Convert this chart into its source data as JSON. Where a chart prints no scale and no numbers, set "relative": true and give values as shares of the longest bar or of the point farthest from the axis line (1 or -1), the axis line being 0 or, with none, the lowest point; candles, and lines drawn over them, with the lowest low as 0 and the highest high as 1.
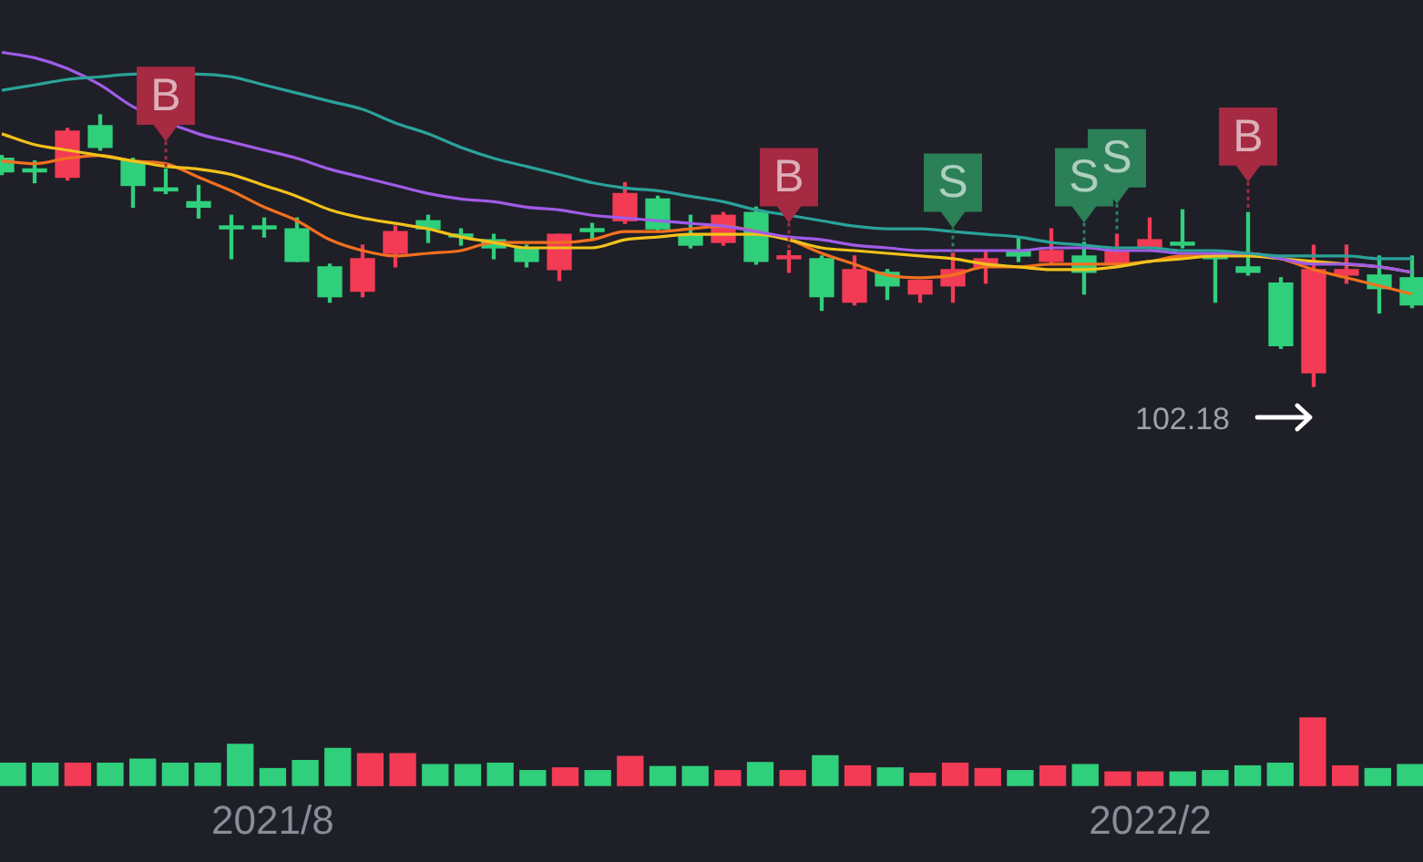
{
  "chart_data": [
    {
      "type": "candlestick",
      "relative": true,
      "tick_labels": false,
      "categories": [
        null,
        null,
        null,
        null,
        null,
        null,
        null,
        null,
        null,
        null,
        null,
        null,
        null,
        null,
        null,
        null,
        null,
        null,
        null,
        null,
        null,
        null,
        null,
        null,
        null,
        null,
        null,
        null,
        null,
        null,
        null,
        null,
        null,
        null,
        null,
        null,
        null,
        null,
        null,
        null,
        null,
        null,
        null,
        null
      ],
      "ohlc": [
        [
          0.84,
          0.85,
          0.78,
          0.79
        ],
        [
          0.8,
          0.83,
          0.75,
          0.79
        ],
        [
          0.77,
          0.95,
          0.76,
          0.94
        ],
        [
          0.96,
          1.0,
          0.87,
          0.88
        ],
        [
          0.83,
          0.84,
          0.66,
          0.74
        ],
        [
          0.73,
          0.8,
          0.71,
          0.72
        ],
        [
          0.68,
          0.74,
          0.62,
          0.66
        ],
        [
          0.59,
          0.63,
          0.47,
          0.58
        ],
        [
          0.59,
          0.62,
          0.55,
          0.58
        ],
        [
          0.58,
          0.62,
          0.46,
          0.46
        ],
        [
          0.44,
          0.45,
          0.31,
          0.33
        ],
        [
          0.35,
          0.52,
          0.33,
          0.47
        ],
        [
          0.49,
          0.59,
          0.44,
          0.57
        ],
        [
          0.61,
          0.63,
          0.53,
          0.58
        ],
        [
          0.56,
          0.58,
          0.52,
          0.55
        ],
        [
          0.54,
          0.56,
          0.47,
          0.51
        ],
        [
          0.51,
          0.52,
          0.44,
          0.46
        ],
        [
          0.43,
          0.56,
          0.39,
          0.56
        ],
        [
          0.58,
          0.6,
          0.54,
          0.57
        ],
        [
          0.61,
          0.75,
          0.6,
          0.71
        ],
        [
          0.69,
          0.7,
          0.57,
          0.58
        ],
        [
          0.56,
          0.63,
          0.51,
          0.52
        ],
        [
          0.53,
          0.64,
          0.52,
          0.63
        ],
        [
          0.64,
          0.66,
          0.45,
          0.46
        ],
        [
          0.47,
          0.5,
          0.42,
          0.48
        ],
        [
          0.47,
          0.48,
          0.28,
          0.33
        ],
        [
          0.31,
          0.48,
          0.3,
          0.43
        ],
        [
          0.42,
          0.43,
          0.32,
          0.37
        ],
        [
          0.34,
          0.39,
          0.31,
          0.39
        ],
        [
          0.37,
          0.49,
          0.31,
          0.43
        ],
        [
          0.44,
          0.5,
          0.38,
          0.47
        ],
        [
          0.5,
          0.55,
          0.46,
          0.48
        ],
        [
          0.46,
          0.58,
          0.45,
          0.5
        ],
        [
          0.48,
          0.53,
          0.34,
          0.42
        ],
        [
          0.45,
          0.56,
          0.44,
          0.5
        ],
        [
          0.51,
          0.62,
          0.5,
          0.54
        ],
        [
          0.53,
          0.65,
          0.51,
          0.52
        ],
        [
          0.48,
          0.49,
          0.31,
          0.47
        ],
        [
          0.44,
          0.64,
          0.41,
          0.42
        ],
        [
          0.38,
          0.4,
          0.14,
          0.15
        ],
        [
          0.05,
          0.52,
          0,
          0.43
        ],
        [
          0.41,
          0.52,
          0.38,
          0.43
        ],
        [
          0.41,
          0.48,
          0.27,
          0.36
        ],
        [
          0.4,
          0.48,
          0.29,
          0.3
        ]
      ],
      "colors": [
        "#30cf7b",
        "#30cf7b",
        "#f33b55",
        "#30cf7b",
        "#30cf7b",
        "#30cf7b",
        "#30cf7b",
        "#30cf7b",
        "#30cf7b",
        "#30cf7b",
        "#30cf7b",
        "#f33b55",
        "#f33b55",
        "#30cf7b",
        "#30cf7b",
        "#30cf7b",
        "#30cf7b",
        "#f33b55",
        "#30cf7b",
        "#f33b55",
        "#30cf7b",
        "#30cf7b",
        "#f33b55",
        "#30cf7b",
        "#f33b55",
        "#30cf7b",
        "#f33b55",
        "#30cf7b",
        "#f33b55",
        "#f33b55",
        "#f33b55",
        "#30cf7b",
        "#f33b55",
        "#30cf7b",
        "#f33b55",
        "#f33b55",
        "#30cf7b",
        "#30cf7b",
        "#30cf7b",
        "#30cf7b",
        "#f33b55",
        "#f33b55",
        "#30cf7b",
        "#30cf7b"
      ],
      "series": [
        {
          "type": "line",
          "color": "#2aa39a",
          "values": [
            1.09,
            1.11,
            1.13,
            1.14,
            1.15,
            null,
            1.15,
            1.14,
            1.11,
            1.08,
            1.05,
            1.02,
            0.97,
            0.93,
            0.88,
            0.84,
            0.81,
            0.78,
            0.75,
            0.73,
            0.72,
            0.7,
            0.68,
            0.65,
            0.63,
            0.61,
            0.59,
            0.58,
            0.58,
            0.57,
            0.56,
            0.55,
            0.53,
            0.52,
            0.51,
            0.51,
            0.5,
            0.5,
            0.49,
            0.48,
            0.48,
            0.48,
            0.47,
            0.47
          ]
        },
        {
          "type": "line",
          "color": "#a05ce8",
          "values": [
            1.23,
            1.21,
            1.17,
            1.11,
            1.03,
            null,
            0.93,
            0.9,
            0.87,
            0.84,
            0.8,
            0.77,
            0.74,
            0.71,
            0.69,
            0.68,
            0.66,
            0.65,
            0.63,
            0.62,
            0.61,
            0.6,
            0.59,
            0.57,
            0.55,
            0.54,
            0.52,
            0.51,
            0.5,
            0.5,
            0.5,
            0.5,
            0.51,
            0.51,
            0.5,
            0.5,
            0.49,
            0.49,
            0.49,
            0.47,
            0.45,
            0.45,
            0.44,
            0.42
          ]
        },
        {
          "type": "line",
          "color": "#f2c21b",
          "values": [
            0.93,
            0.89,
            0.87,
            0.85,
            0.83,
            0.81,
            0.8,
            0.78,
            0.74,
            0.7,
            0.65,
            0.62,
            0.6,
            0.58,
            0.55,
            0.53,
            0.51,
            0.51,
            0.51,
            0.54,
            0.55,
            0.56,
            0.56,
            0.56,
            0.54,
            0.51,
            0.5,
            0.49,
            0.48,
            0.47,
            0.45,
            0.44,
            0.43,
            0.43,
            0.44,
            0.46,
            0.47,
            0.48,
            0.48,
            0.47,
            0.46,
            0.45,
            0.44,
            0.42
          ]
        },
        {
          "type": "line",
          "color": "#f2701f",
          "values": [
            0.83,
            0.82,
            0.84,
            0.85,
            0.83,
            0.82,
            0.77,
            0.72,
            0.66,
            0.61,
            0.54,
            0.5,
            0.48,
            0.49,
            0.5,
            0.53,
            0.53,
            0.53,
            0.54,
            0.57,
            0.57,
            0.58,
            0.59,
            0.57,
            0.54,
            0.49,
            0.45,
            0.41,
            0.4,
            0.41,
            0.44,
            0.44,
            0.45,
            0.45,
            0.45,
            0.46,
            0.48,
            0.48,
            0.49,
            0.47,
            0.43,
            0.4,
            0.37,
            0.34
          ]
        },
        {
          "type": "scatter",
          "name": "B",
          "color": "#a52a42",
          "values": [
            null,
            null,
            null,
            null,
            null,
            1.07,
            null,
            null,
            null,
            null,
            null,
            null,
            null,
            null,
            null,
            null,
            null,
            null,
            null,
            null,
            null,
            null,
            null,
            null,
            0.77,
            null,
            null,
            null,
            null,
            null,
            null,
            null,
            null,
            null,
            null,
            null,
            null,
            null,
            0.92,
            null,
            null,
            null,
            null,
            null
          ]
        },
        {
          "type": "scatter",
          "name": "S",
          "color": "#2b8058",
          "values": [
            null,
            null,
            null,
            null,
            null,
            null,
            null,
            null,
            null,
            null,
            null,
            null,
            null,
            null,
            null,
            null,
            null,
            null,
            null,
            null,
            null,
            null,
            null,
            null,
            null,
            null,
            null,
            null,
            null,
            0.75,
            null,
            null,
            null,
            0.77,
            0.84,
            null,
            null,
            null,
            null,
            null,
            null,
            null,
            null,
            null
          ]
        }
      ],
      "annotations": [
        "102.18"
      ]
    },
    {
      "type": "bar",
      "relative": true,
      "tick_labels": "x",
      "categories": [
        null,
        null,
        null,
        null,
        null,
        null,
        null,
        null,
        "2021/8",
        null,
        null,
        null,
        null,
        null,
        null,
        null,
        null,
        null,
        null,
        null,
        null,
        null,
        null,
        null,
        null,
        null,
        null,
        null,
        null,
        null,
        null,
        null,
        null,
        null,
        null,
        "2022/2",
        null,
        null,
        null,
        null,
        null,
        null,
        null,
        null
      ],
      "values": [
        0.33,
        0.33,
        0.33,
        0.33,
        0.39,
        0.33,
        0.33,
        0.61,
        0.25,
        0.37,
        0.55,
        0.47,
        0.47,
        0.31,
        0.31,
        0.33,
        0.22,
        0.26,
        0.22,
        0.43,
        0.28,
        0.28,
        0.22,
        0.34,
        0.22,
        0.44,
        0.29,
        0.26,
        0.18,
        0.33,
        0.25,
        0.22,
        0.29,
        0.31,
        0.2,
        0.2,
        0.2,
        0.22,
        0.29,
        0.33,
        1,
        0.29,
        0.25,
        0.31
      ],
      "colors": [
        "#30cf7b",
        "#30cf7b",
        "#f33b55",
        "#30cf7b",
        "#30cf7b",
        "#30cf7b",
        "#30cf7b",
        "#30cf7b",
        "#30cf7b",
        "#30cf7b",
        "#30cf7b",
        "#f33b55",
        "#f33b55",
        "#30cf7b",
        "#30cf7b",
        "#30cf7b",
        "#30cf7b",
        "#f33b55",
        "#30cf7b",
        "#f33b55",
        "#30cf7b",
        "#30cf7b",
        "#f33b55",
        "#30cf7b",
        "#f33b55",
        "#30cf7b",
        "#f33b55",
        "#30cf7b",
        "#f33b55",
        "#f33b55",
        "#f33b55",
        "#30cf7b",
        "#f33b55",
        "#30cf7b",
        "#f33b55",
        "#f33b55",
        "#30cf7b",
        "#30cf7b",
        "#30cf7b",
        "#30cf7b",
        "#f33b55",
        "#f33b55",
        "#30cf7b",
        "#30cf7b"
      ]
    }
  ]
}
